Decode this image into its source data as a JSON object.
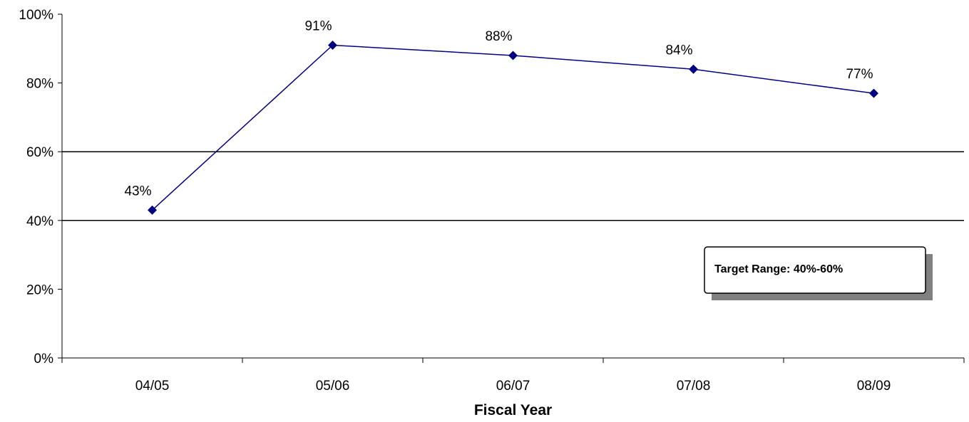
{
  "chart_data": {
    "type": "line",
    "categories": [
      "04/05",
      "05/06",
      "06/07",
      "07/08",
      "08/09"
    ],
    "series": [
      {
        "values": [
          43,
          91,
          88,
          84,
          77
        ],
        "labels": [
          "43%",
          "91%",
          "88%",
          "84%",
          "77%"
        ],
        "color": "#000080"
      }
    ],
    "title": "",
    "xlabel": "Fiscal Year",
    "ylabel": "",
    "ylim": [
      0,
      100
    ],
    "yticks": [
      0,
      20,
      40,
      60,
      80,
      100
    ],
    "ytick_labels": [
      "0%",
      "20%",
      "40%",
      "60%",
      "80%",
      "100%"
    ],
    "reference_lines": [
      40,
      60
    ],
    "grid": false,
    "annotation": {
      "text": "Target Range: 40%-60%"
    }
  }
}
